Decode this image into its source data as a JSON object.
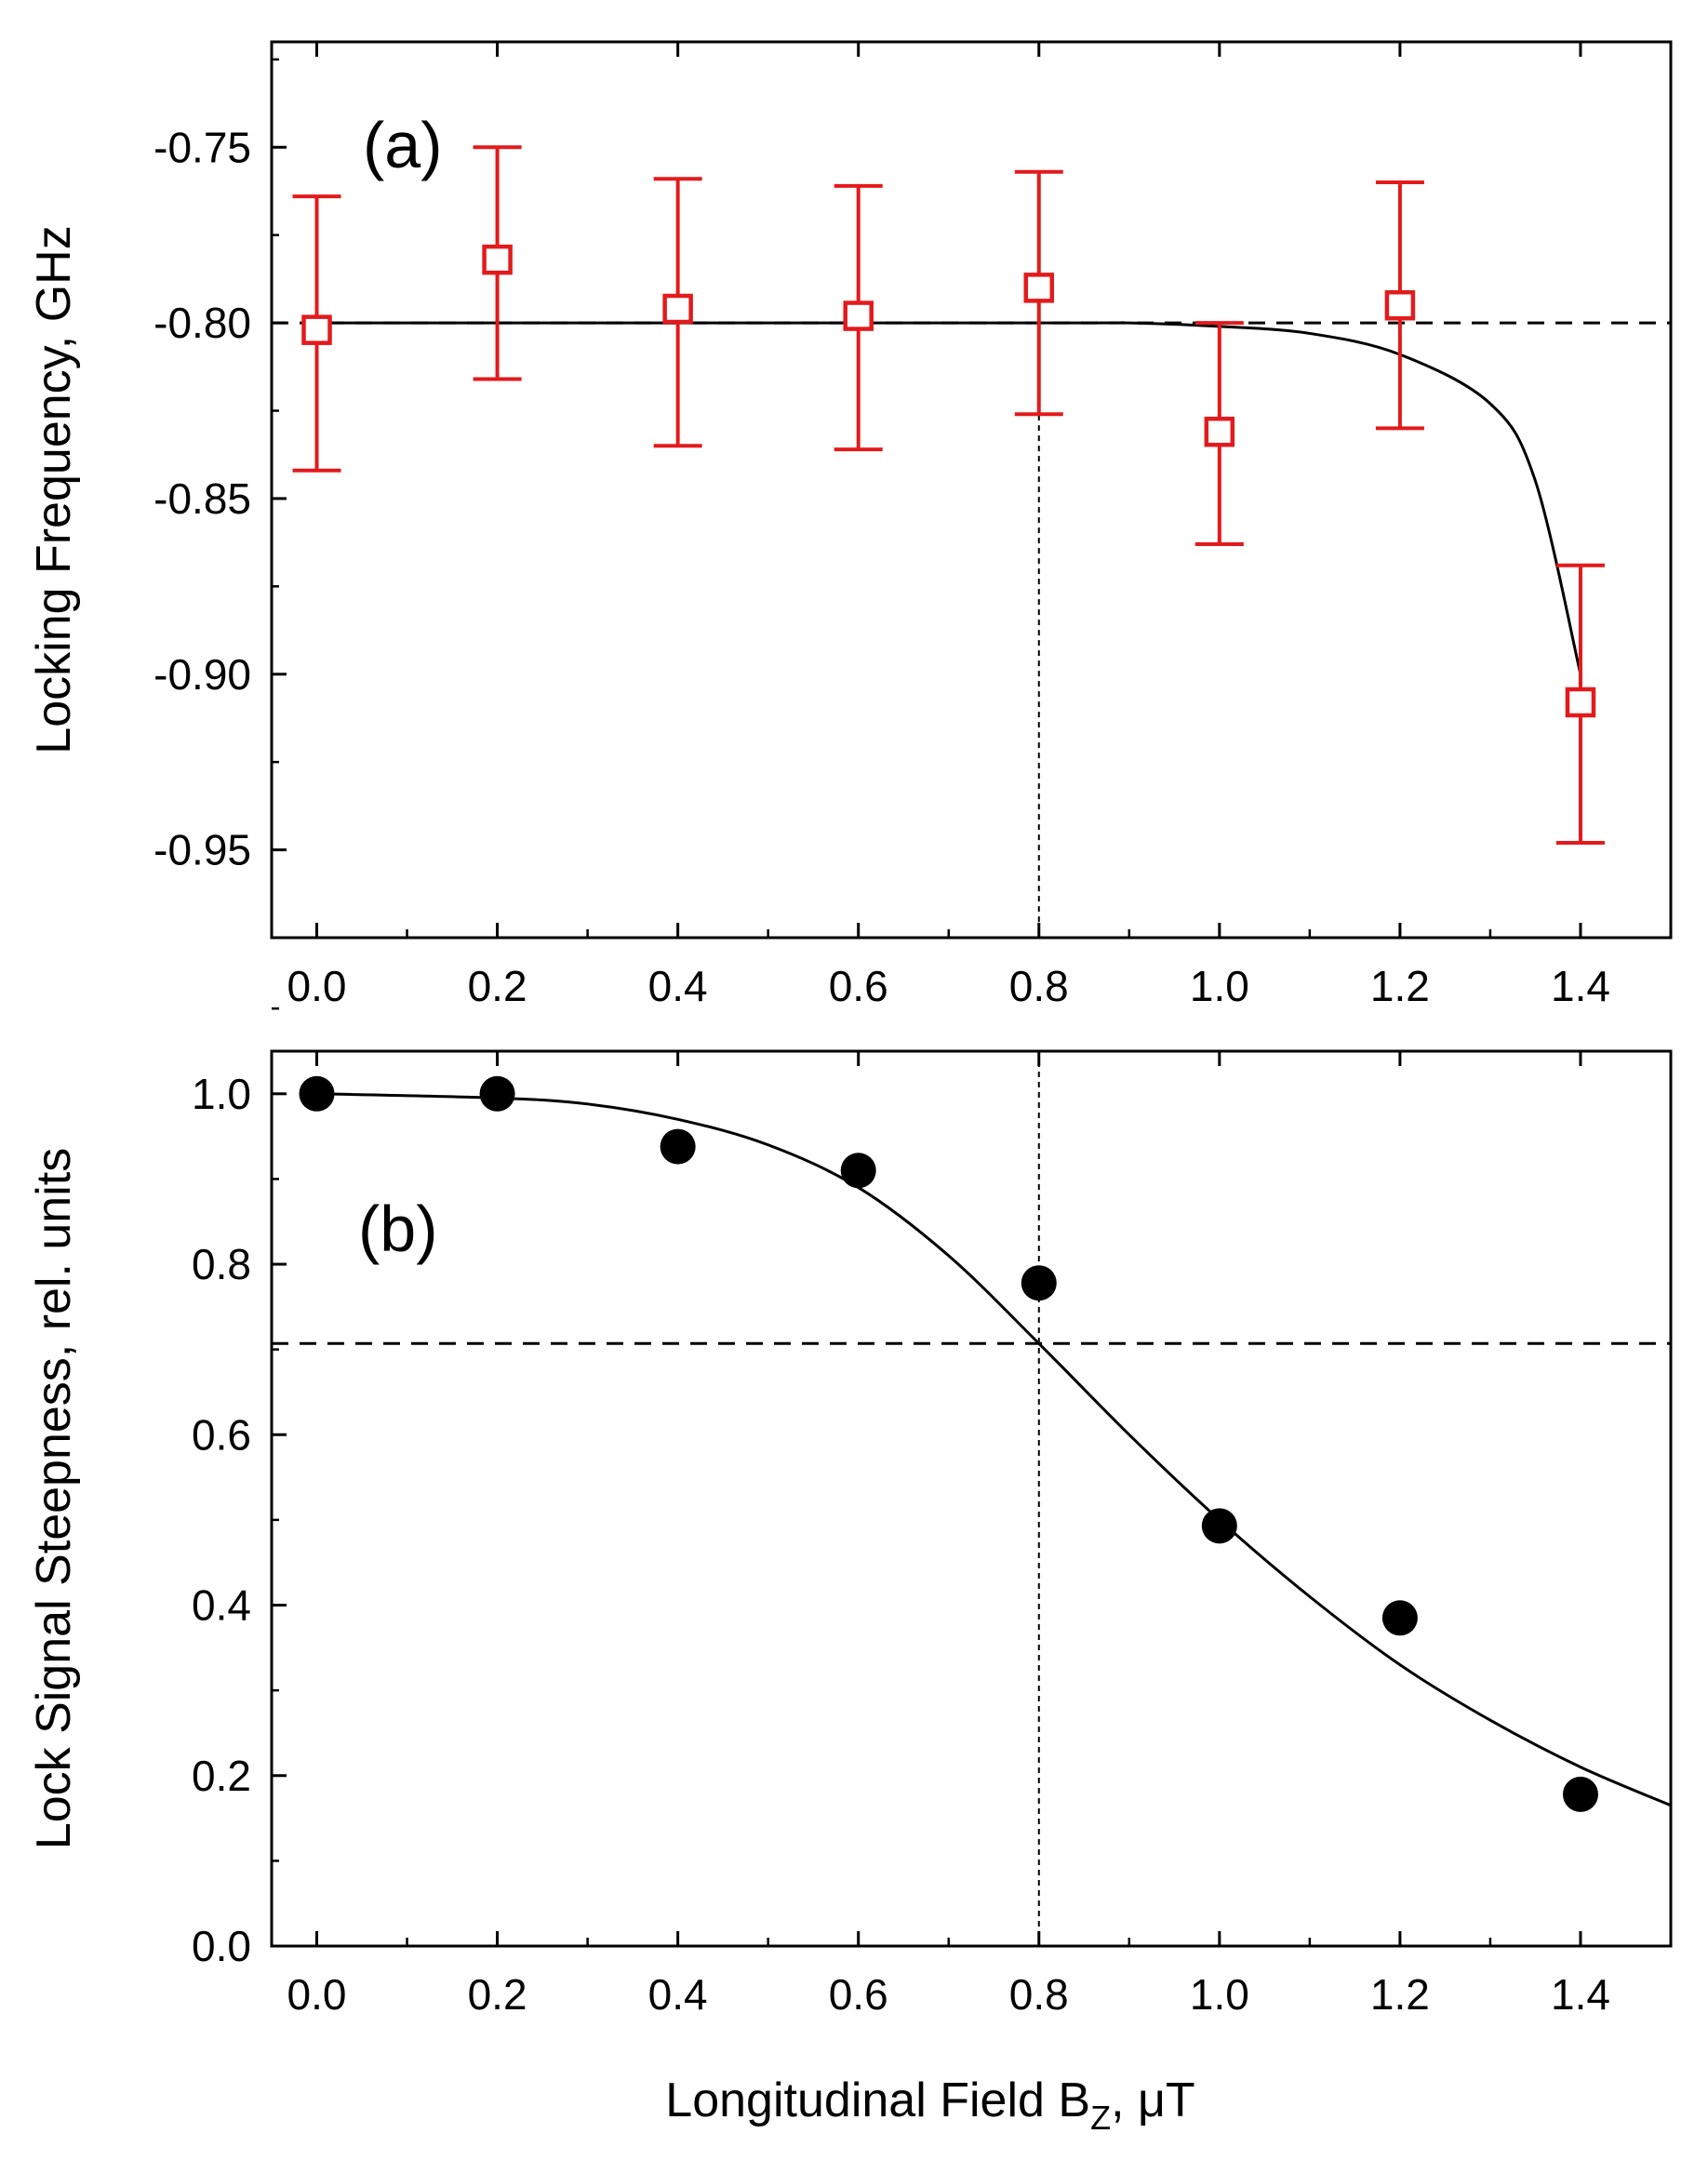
{
  "figure": {
    "xlabel_main": "Longitudinal Field B",
    "xlabel_sub": "Z",
    "xlabel_unit": ", μT"
  },
  "chart_data": [
    {
      "type": "scatter",
      "panel_label": "(a)",
      "ylabel": "Locking Frequency, GHz",
      "xlabel": "Longitudinal Field B_Z, μT",
      "xlim": [
        -0.05,
        1.5
      ],
      "ylim": [
        -0.975,
        -0.72
      ],
      "x_ticks": [
        0.0,
        0.2,
        0.4,
        0.6,
        0.8,
        1.0,
        1.2,
        1.4
      ],
      "x_tick_labels": [
        "0.0",
        "0.2",
        "0.4",
        "0.6",
        "0.8",
        "1.0",
        "1.2",
        "1.4"
      ],
      "y_ticks": [
        -0.95,
        -0.9,
        -0.85,
        -0.8,
        -0.75
      ],
      "y_tick_labels": [
        "-0.95",
        "-0.90",
        "-0.85",
        "-0.80",
        "-0.75"
      ],
      "marker": "open-square",
      "color": "#e31a1c",
      "series": [
        {
          "name": "Locking frequency",
          "x": [
            0.0,
            0.2,
            0.4,
            0.6,
            0.8,
            1.0,
            1.2,
            1.4
          ],
          "y": [
            -0.802,
            -0.782,
            -0.796,
            -0.798,
            -0.79,
            -0.831,
            -0.795,
            -0.908
          ],
          "err_low": [
            -0.842,
            -0.816,
            -0.835,
            -0.836,
            -0.826,
            -0.863,
            -0.83,
            -0.948
          ],
          "err_high": [
            -0.764,
            -0.75,
            -0.759,
            -0.761,
            -0.757,
            -0.8,
            -0.76,
            -0.869
          ]
        }
      ],
      "fit_curve": {
        "color": "#000000",
        "x": [
          0.0,
          0.8,
          0.9,
          1.0,
          1.1,
          1.2,
          1.3,
          1.35,
          1.4
        ],
        "y": [
          -0.8,
          -0.8,
          -0.8,
          -0.801,
          -0.803,
          -0.809,
          -0.823,
          -0.845,
          -0.9
        ]
      },
      "reference_lines": [
        {
          "orientation": "horizontal",
          "value": -0.8,
          "style": "dashed"
        },
        {
          "orientation": "vertical",
          "value": 0.8,
          "style": "dotted"
        }
      ]
    },
    {
      "type": "scatter",
      "panel_label": "(b)",
      "ylabel": "Lock Signal Steepness, rel. units",
      "xlabel": "Longitudinal Field B_Z, μT",
      "xlim": [
        -0.05,
        1.5
      ],
      "ylim": [
        0.0,
        1.05
      ],
      "x_ticks": [
        0.0,
        0.2,
        0.4,
        0.6,
        0.8,
        1.0,
        1.2,
        1.4
      ],
      "x_tick_labels": [
        "0.0",
        "0.2",
        "0.4",
        "0.6",
        "0.8",
        "1.0",
        "1.2",
        "1.4"
      ],
      "y_ticks": [
        0.0,
        0.2,
        0.4,
        0.6,
        0.8,
        1.0
      ],
      "y_tick_labels": [
        "0.0",
        "0.2",
        "0.4",
        "0.6",
        "0.8",
        "1.0"
      ],
      "marker": "filled-circle",
      "color": "#000000",
      "series": [
        {
          "name": "Lock signal steepness",
          "x": [
            0.0,
            0.2,
            0.4,
            0.6,
            0.8,
            1.0,
            1.2,
            1.4
          ],
          "y": [
            1.0,
            1.0,
            0.938,
            0.91,
            0.778,
            0.493,
            0.385,
            0.178
          ]
        }
      ],
      "fit_curve": {
        "color": "#000000",
        "x": [
          0.0,
          0.2,
          0.3,
          0.4,
          0.5,
          0.6,
          0.7,
          0.8,
          0.9,
          1.0,
          1.1,
          1.2,
          1.3,
          1.4,
          1.5
        ],
        "y": [
          1.0,
          0.995,
          0.988,
          0.97,
          0.94,
          0.89,
          0.81,
          0.707,
          0.6,
          0.5,
          0.41,
          0.33,
          0.265,
          0.21,
          0.165
        ]
      },
      "reference_lines": [
        {
          "orientation": "horizontal",
          "value": 0.707,
          "style": "dashed"
        },
        {
          "orientation": "vertical",
          "value": 0.8,
          "style": "dotted"
        }
      ]
    }
  ]
}
